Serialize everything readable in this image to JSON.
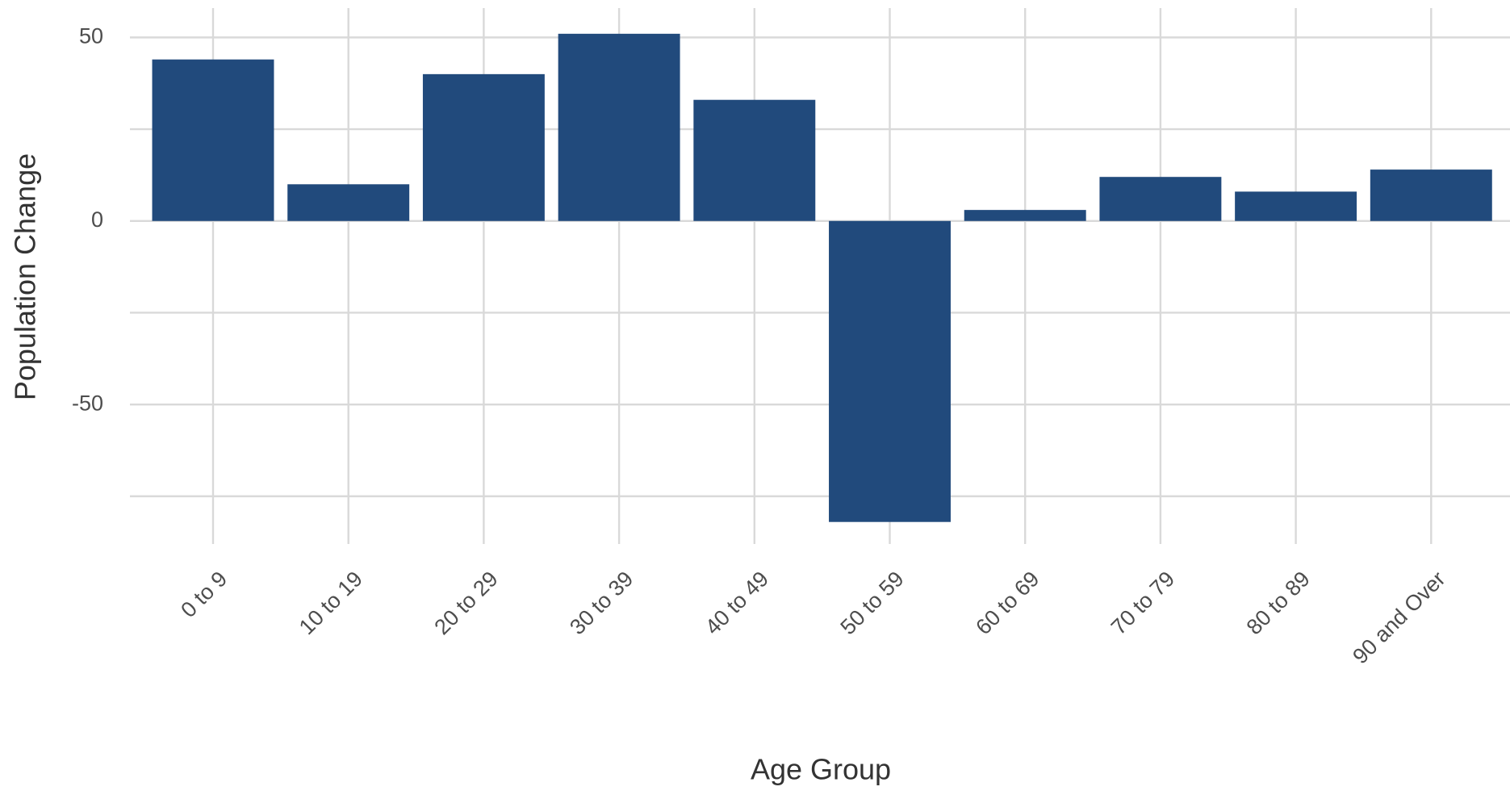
{
  "chart_data": {
    "type": "bar",
    "x_label": "Age Group",
    "y_label": "Population Change",
    "categories": [
      "0 to 9",
      "10 to 19",
      "20 to 29",
      "30 to 39",
      "40 to 49",
      "50 to 59",
      "60 to 69",
      "70 to 79",
      "80 to 89",
      "90 and Over"
    ],
    "values": [
      44,
      10,
      40,
      51,
      33,
      -82,
      3,
      12,
      8,
      14
    ],
    "color": "#214a7c",
    "ylim": [
      -88,
      58
    ],
    "yticks": [
      -50,
      0,
      50
    ],
    "minor_yticks": [
      -75,
      -25,
      25
    ],
    "grid": true
  }
}
